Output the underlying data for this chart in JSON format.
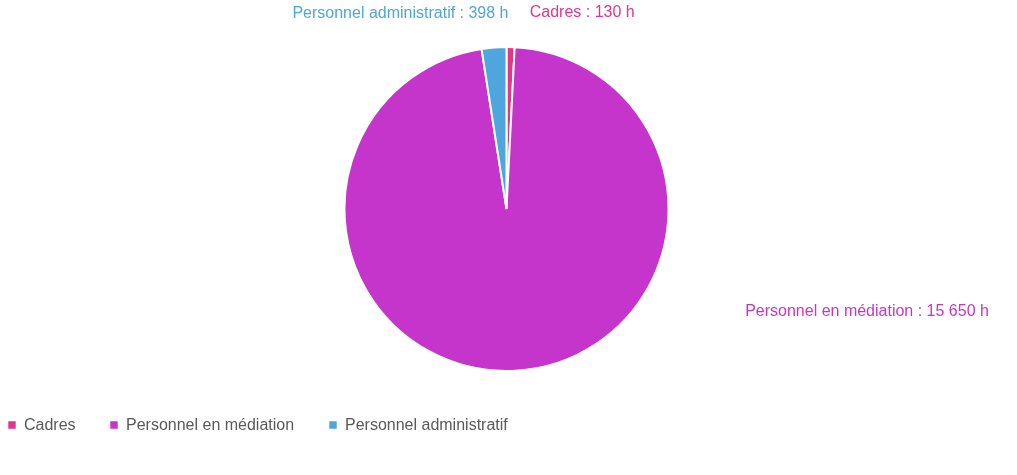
{
  "chart_data": {
    "type": "pie",
    "categories": [
      "Cadres",
      "Personnel en médiation",
      "Personnel administratif"
    ],
    "values": [
      130,
      15650,
      398
    ],
    "colors": [
      "#e0368c",
      "#c535cc",
      "#4ea6dc"
    ],
    "value_labels": [
      "Cadres : 130 h",
      "Personnel en médiation : 15 650 h",
      "Personnel administratif : 398 h"
    ],
    "legend": "bottom"
  }
}
